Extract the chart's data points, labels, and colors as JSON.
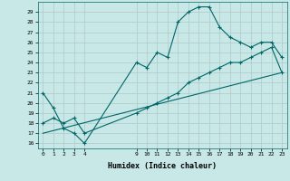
{
  "xlabel": "Humidex (Indice chaleur)",
  "background_color": "#c8e8e8",
  "grid_color": "#b0c8c8",
  "line_color": "#006666",
  "xlim": [
    -0.5,
    23.5
  ],
  "ylim": [
    15.5,
    30.0
  ],
  "xticks": [
    0,
    1,
    2,
    3,
    4,
    9,
    10,
    11,
    12,
    13,
    14,
    15,
    16,
    17,
    18,
    19,
    20,
    21,
    22,
    23
  ],
  "yticks": [
    16,
    17,
    18,
    19,
    20,
    21,
    22,
    23,
    24,
    25,
    26,
    27,
    28,
    29
  ],
  "line1_x": [
    0,
    1,
    2,
    3,
    4,
    9,
    10,
    11,
    12,
    13,
    14,
    15,
    16,
    17,
    18,
    19,
    20,
    21,
    22,
    23
  ],
  "line1_y": [
    21,
    19.5,
    17.5,
    17,
    16,
    24,
    23.5,
    25,
    24.5,
    28,
    29,
    29.5,
    29.5,
    27.5,
    26.5,
    26,
    25.5,
    26,
    26,
    24.5
  ],
  "line2_x": [
    0,
    1,
    2,
    3,
    4,
    9,
    10,
    11,
    12,
    13,
    14,
    15,
    16,
    17,
    18,
    19,
    20,
    21,
    22,
    23
  ],
  "line2_y": [
    18,
    18.5,
    18,
    18.5,
    17,
    19,
    19.5,
    20,
    20.5,
    21,
    22,
    22.5,
    23,
    23.5,
    24,
    24,
    24.5,
    25,
    25.5,
    23
  ],
  "line3_x": [
    0,
    23
  ],
  "line3_y": [
    17,
    23
  ]
}
